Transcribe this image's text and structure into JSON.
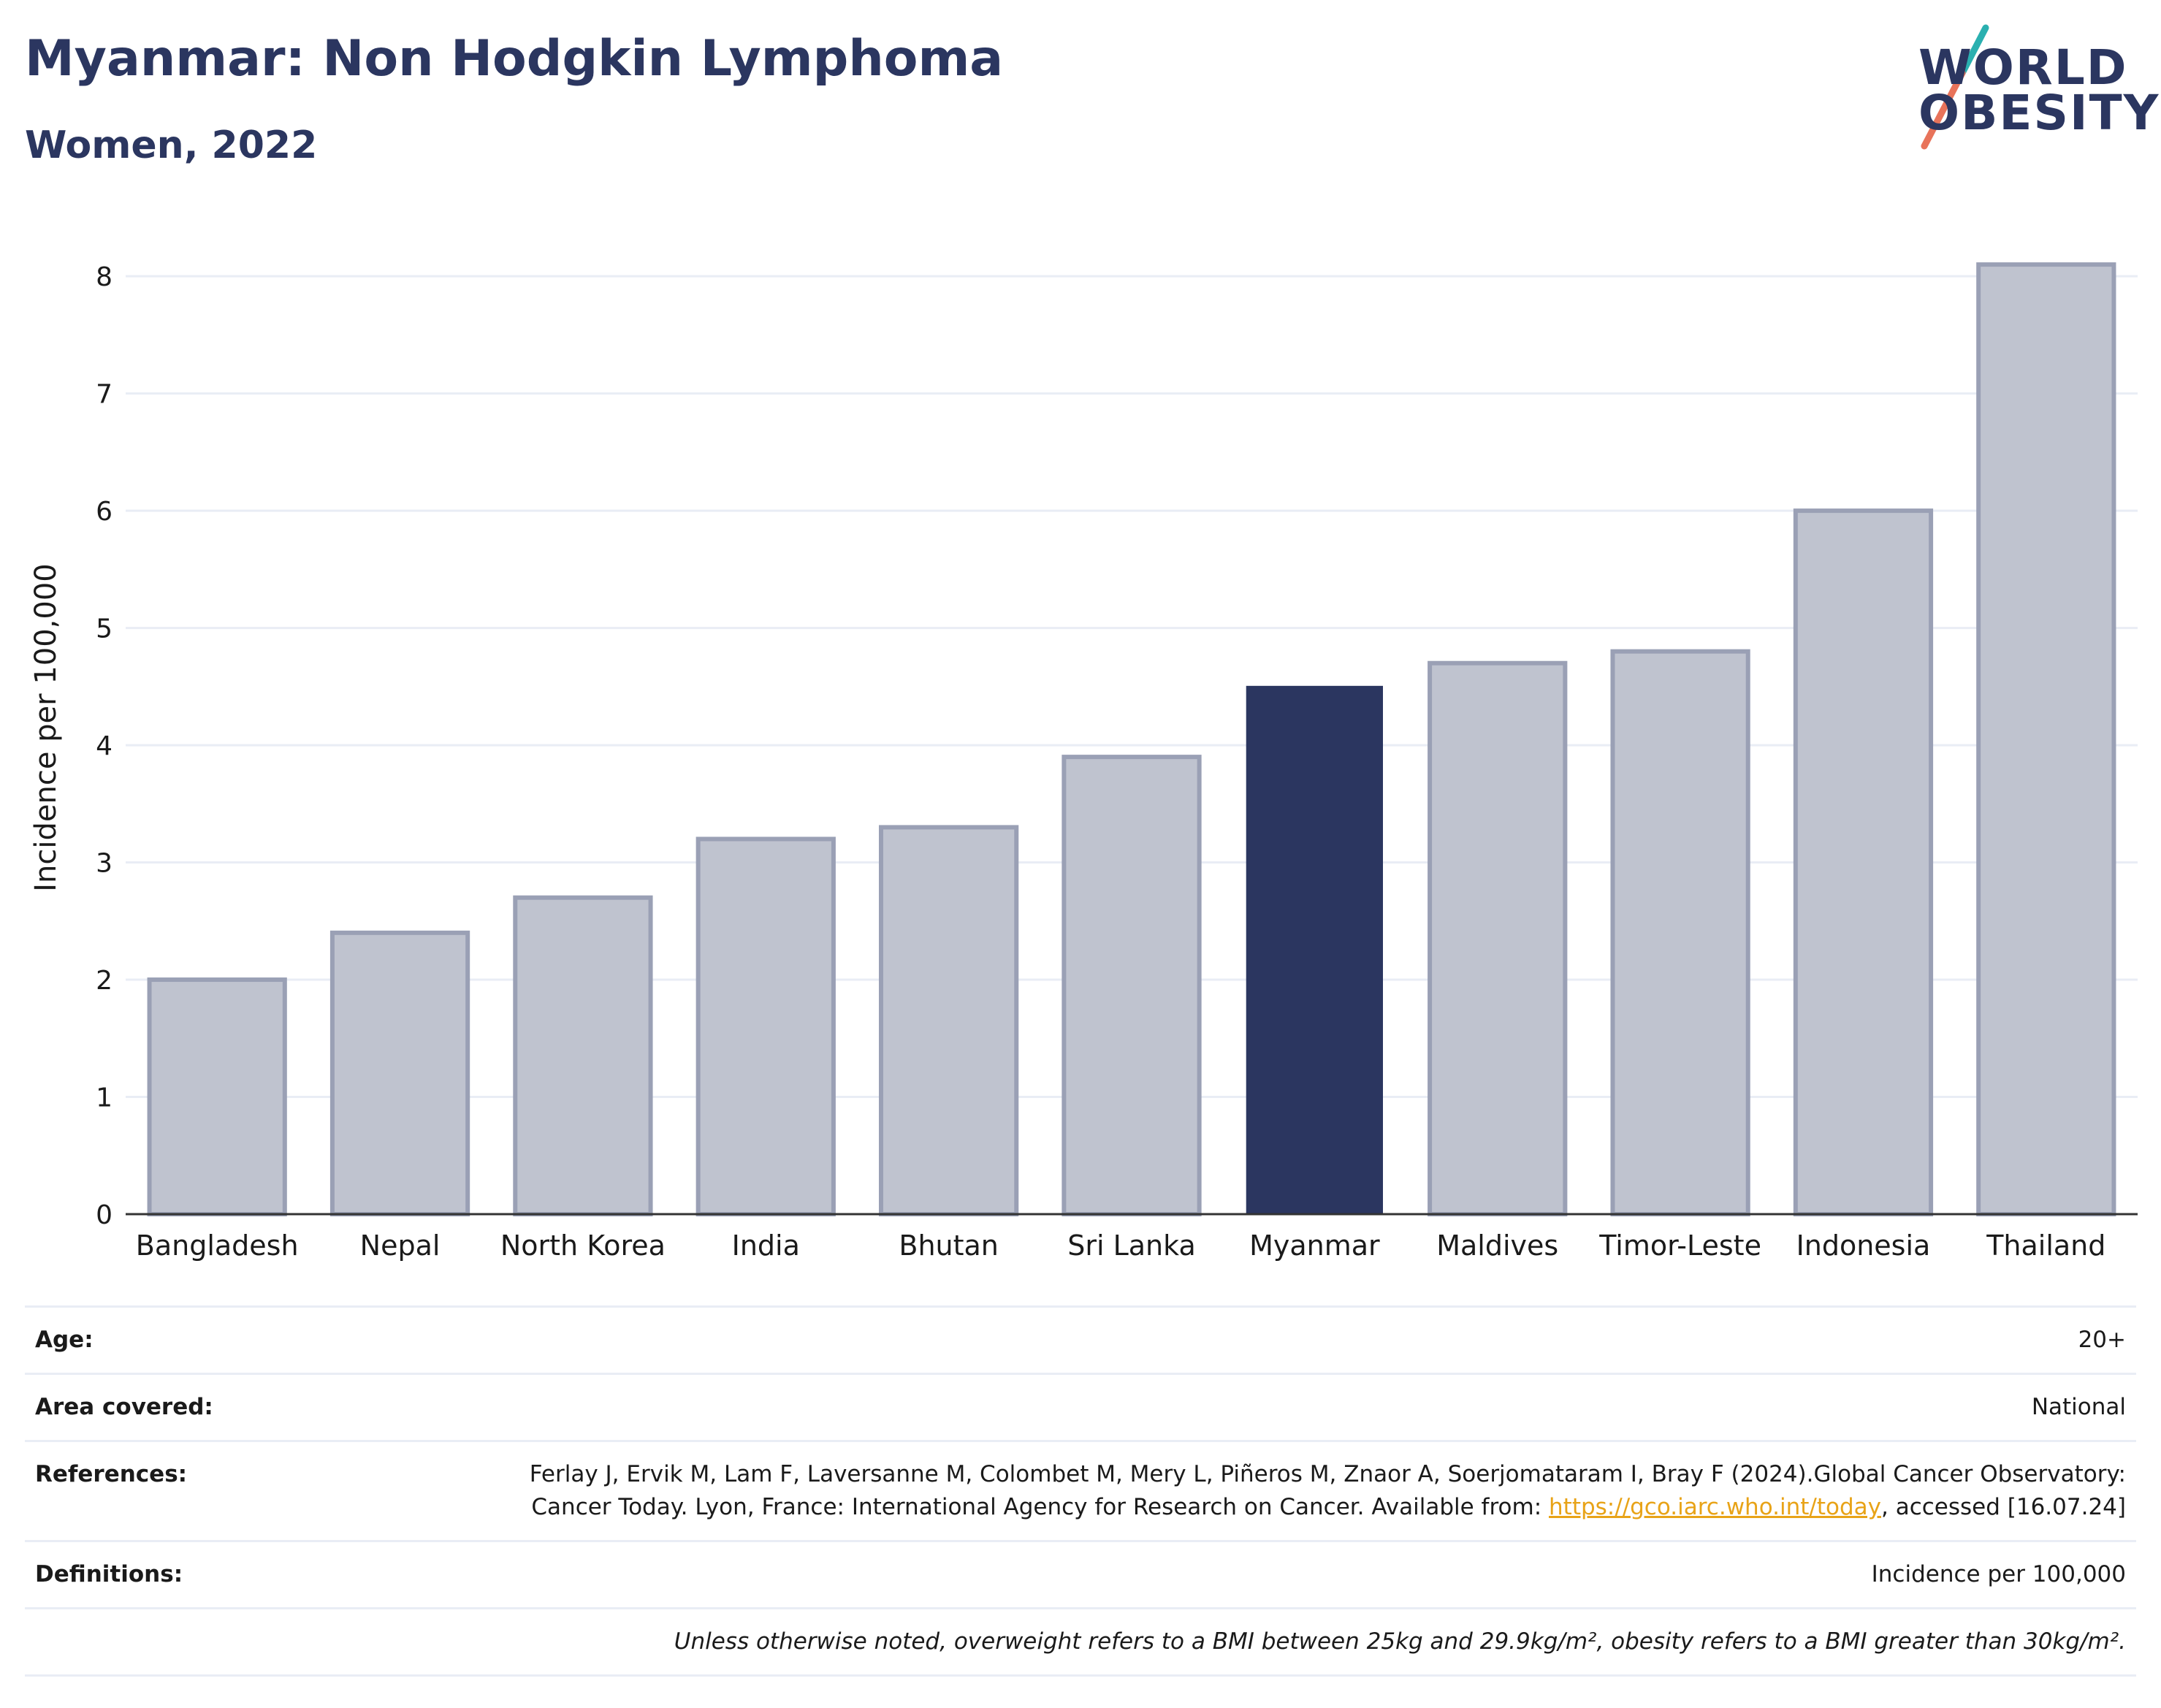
{
  "header": {
    "title": "Myanmar: Non Hodgkin Lymphoma",
    "subtitle": "Women, 2022"
  },
  "logo": {
    "line1": "WORLD",
    "line2": "OBESITY",
    "colors": [
      "#2b3660",
      "#2ab0b0",
      "#e8735a"
    ]
  },
  "colors": {
    "highlight_bar": "#2b3660",
    "other_bar_fill": "#bfc3cf",
    "other_bar_stroke": "#9aa0b5",
    "grid": "#e9edf5",
    "text": "#1a1a1a",
    "link": "#e8a317"
  },
  "chart_data": {
    "type": "bar",
    "categories": [
      "Bangladesh",
      "Nepal",
      "North Korea",
      "India",
      "Bhutan",
      "Sri Lanka",
      "Myanmar",
      "Maldives",
      "Timor-Leste",
      "Indonesia",
      "Thailand"
    ],
    "values": [
      2.0,
      2.4,
      2.7,
      3.2,
      3.3,
      3.9,
      4.5,
      4.7,
      4.8,
      6.0,
      8.1
    ],
    "highlight": "Myanmar",
    "ylabel": "Incidence per 100,000",
    "xlabel": "",
    "ylim": [
      0,
      8.3
    ],
    "yticks": [
      0,
      1,
      2,
      3,
      4,
      5,
      6,
      7,
      8
    ],
    "grid": true,
    "legend": "none"
  },
  "meta": {
    "age_label": "Age:",
    "age_value": "20+",
    "area_label": "Area covered:",
    "area_value": "National",
    "references_label": "References:",
    "references_text_1": "Ferlay J, Ervik M, Lam F, Laversanne M, Colombet M, Mery L, Piñeros M, Znaor A, Soerjomataram I, Bray F (2024).Global Cancer Observatory: Cancer Today. Lyon, France: International Agency for Research on Cancer. Available from:",
    "references_link": "https://gco.iarc.who.int/today",
    "references_text_2": ", accessed [16.07.24]",
    "definitions_label": "Definitions:",
    "definitions_value": "Incidence per 100,000",
    "footnote": "Unless otherwise noted, overweight refers to a BMI between 25kg and 29.9kg/m², obesity refers to a BMI greater than 30kg/m²."
  }
}
